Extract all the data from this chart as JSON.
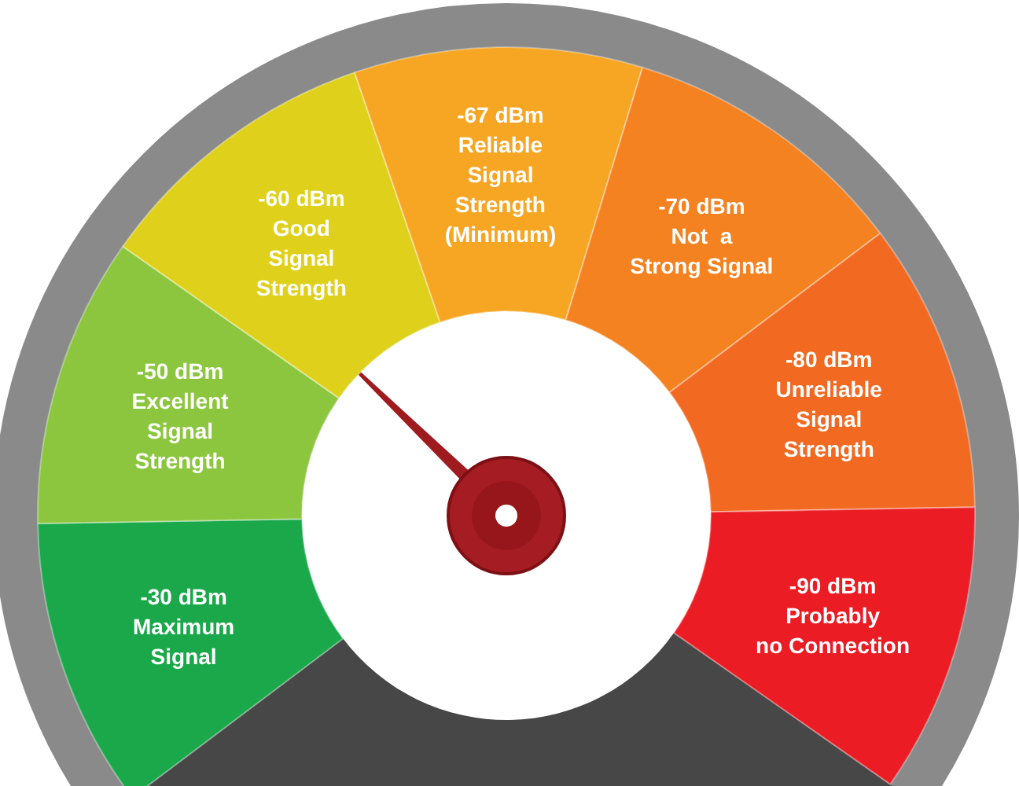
{
  "chart_data": {
    "type": "donut",
    "categories": [
      "-30 dBm\nMaximum\nSignal",
      "-50 dBm\nExcellent\nSignal\nStrength",
      "-60 dBm\nGood\nSignal\nStrength",
      "-67 dBm\nReliable\nSignal\nStrength\n(Minimum)",
      "-70 dBm\nNot  a\nStrong Signal",
      "-80 dBm\nUnreliable\nSignal\nStrength",
      "-90 dBm\nProbably\nno Connection"
    ],
    "values": [
      14.3,
      14.3,
      14.3,
      14.2,
      14.3,
      14.3,
      14.3
    ],
    "colors": [
      "#1aa84b",
      "#8cc63f",
      "#dfd11b",
      "#f6a623",
      "#f58220",
      "#f26a22",
      "#ec1c24"
    ],
    "needle": "-60 dBm\nGood\nSignal\nStrength"
  }
}
